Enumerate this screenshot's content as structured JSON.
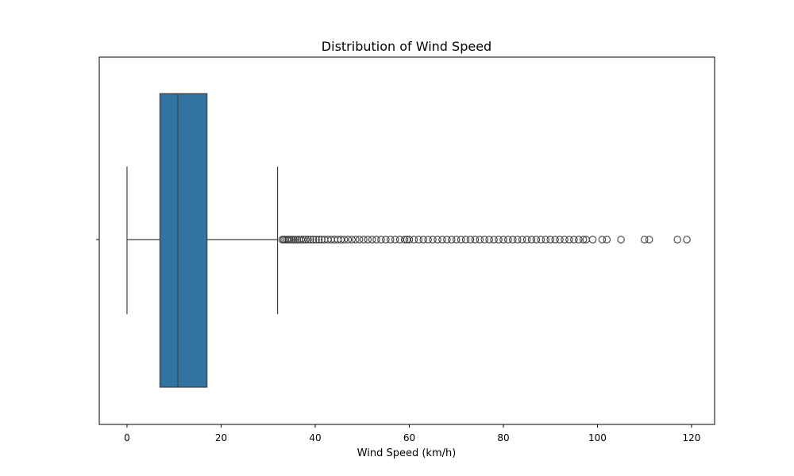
{
  "chart_data": {
    "type": "boxplot",
    "title": "Distribution of Wind Speed",
    "xlabel": "Wind Speed (km/h)",
    "ylabel": "",
    "xlim": [
      -5.9,
      124.9
    ],
    "x_ticks": [
      0,
      20,
      40,
      60,
      80,
      100,
      120
    ],
    "orientation": "horizontal",
    "grid": false,
    "box": {
      "whisker_low": 0,
      "q1": 7,
      "median": 10.8,
      "q3": 17,
      "whisker_high": 32,
      "color": "#3274a1",
      "outliers": [
        33,
        33.3,
        33.6,
        34,
        34.3,
        34.6,
        35,
        35.4,
        35.8,
        36.2,
        36.6,
        37,
        37.5,
        38,
        38.5,
        39,
        39.6,
        40.2,
        40.8,
        41.4,
        42,
        42.7,
        43.4,
        44.1,
        44.8,
        45.5,
        46.2,
        47,
        47.8,
        48.6,
        49.4,
        50.3,
        51.2,
        52.1,
        53,
        54,
        55,
        56,
        57,
        58,
        59,
        59.5,
        60,
        61,
        62,
        63,
        64,
        65,
        66,
        67,
        68,
        69,
        70,
        71,
        72,
        73,
        74,
        75,
        76,
        77,
        78,
        79,
        80,
        81,
        82,
        83,
        84,
        85,
        86,
        87,
        88,
        89,
        90,
        91,
        92,
        93,
        94,
        95,
        96,
        97,
        97.6,
        99,
        101,
        102,
        105,
        110,
        111,
        117,
        119
      ]
    }
  }
}
